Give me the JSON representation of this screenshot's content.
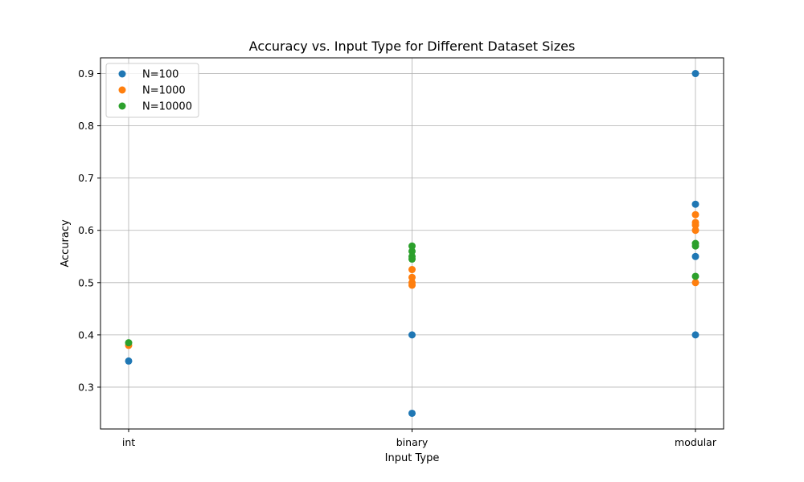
{
  "chart_data": {
    "type": "scatter",
    "title": "Accuracy vs. Input Type for Different Dataset Sizes",
    "xlabel": "Input Type",
    "ylabel": "Accuracy",
    "categories": [
      "int",
      "binary",
      "modular"
    ],
    "ylim": [
      0.22,
      0.93
    ],
    "yticks": [
      0.3,
      0.4,
      0.5,
      0.6,
      0.7,
      0.8,
      0.9
    ],
    "grid": true,
    "legend_position": "top-left",
    "series": [
      {
        "name": "N=100",
        "color": "#1f77b4",
        "points": [
          {
            "x": "int",
            "y": 0.35
          },
          {
            "x": "binary",
            "y": 0.4
          },
          {
            "x": "binary",
            "y": 0.25
          },
          {
            "x": "modular",
            "y": 0.9
          },
          {
            "x": "modular",
            "y": 0.65
          },
          {
            "x": "modular",
            "y": 0.55
          },
          {
            "x": "modular",
            "y": 0.4
          }
        ]
      },
      {
        "name": "N=1000",
        "color": "#ff7f0e",
        "points": [
          {
            "x": "int",
            "y": 0.38
          },
          {
            "x": "binary",
            "y": 0.525
          },
          {
            "x": "binary",
            "y": 0.51
          },
          {
            "x": "binary",
            "y": 0.5
          },
          {
            "x": "binary",
            "y": 0.495
          },
          {
            "x": "modular",
            "y": 0.63
          },
          {
            "x": "modular",
            "y": 0.615
          },
          {
            "x": "modular",
            "y": 0.61
          },
          {
            "x": "modular",
            "y": 0.6
          },
          {
            "x": "modular",
            "y": 0.5
          }
        ]
      },
      {
        "name": "N=10000",
        "color": "#2ca02c",
        "points": [
          {
            "x": "int",
            "y": 0.385
          },
          {
            "x": "binary",
            "y": 0.57
          },
          {
            "x": "binary",
            "y": 0.56
          },
          {
            "x": "binary",
            "y": 0.55
          },
          {
            "x": "binary",
            "y": 0.545
          },
          {
            "x": "modular",
            "y": 0.575
          },
          {
            "x": "modular",
            "y": 0.57
          },
          {
            "x": "modular",
            "y": 0.512
          }
        ]
      }
    ]
  }
}
